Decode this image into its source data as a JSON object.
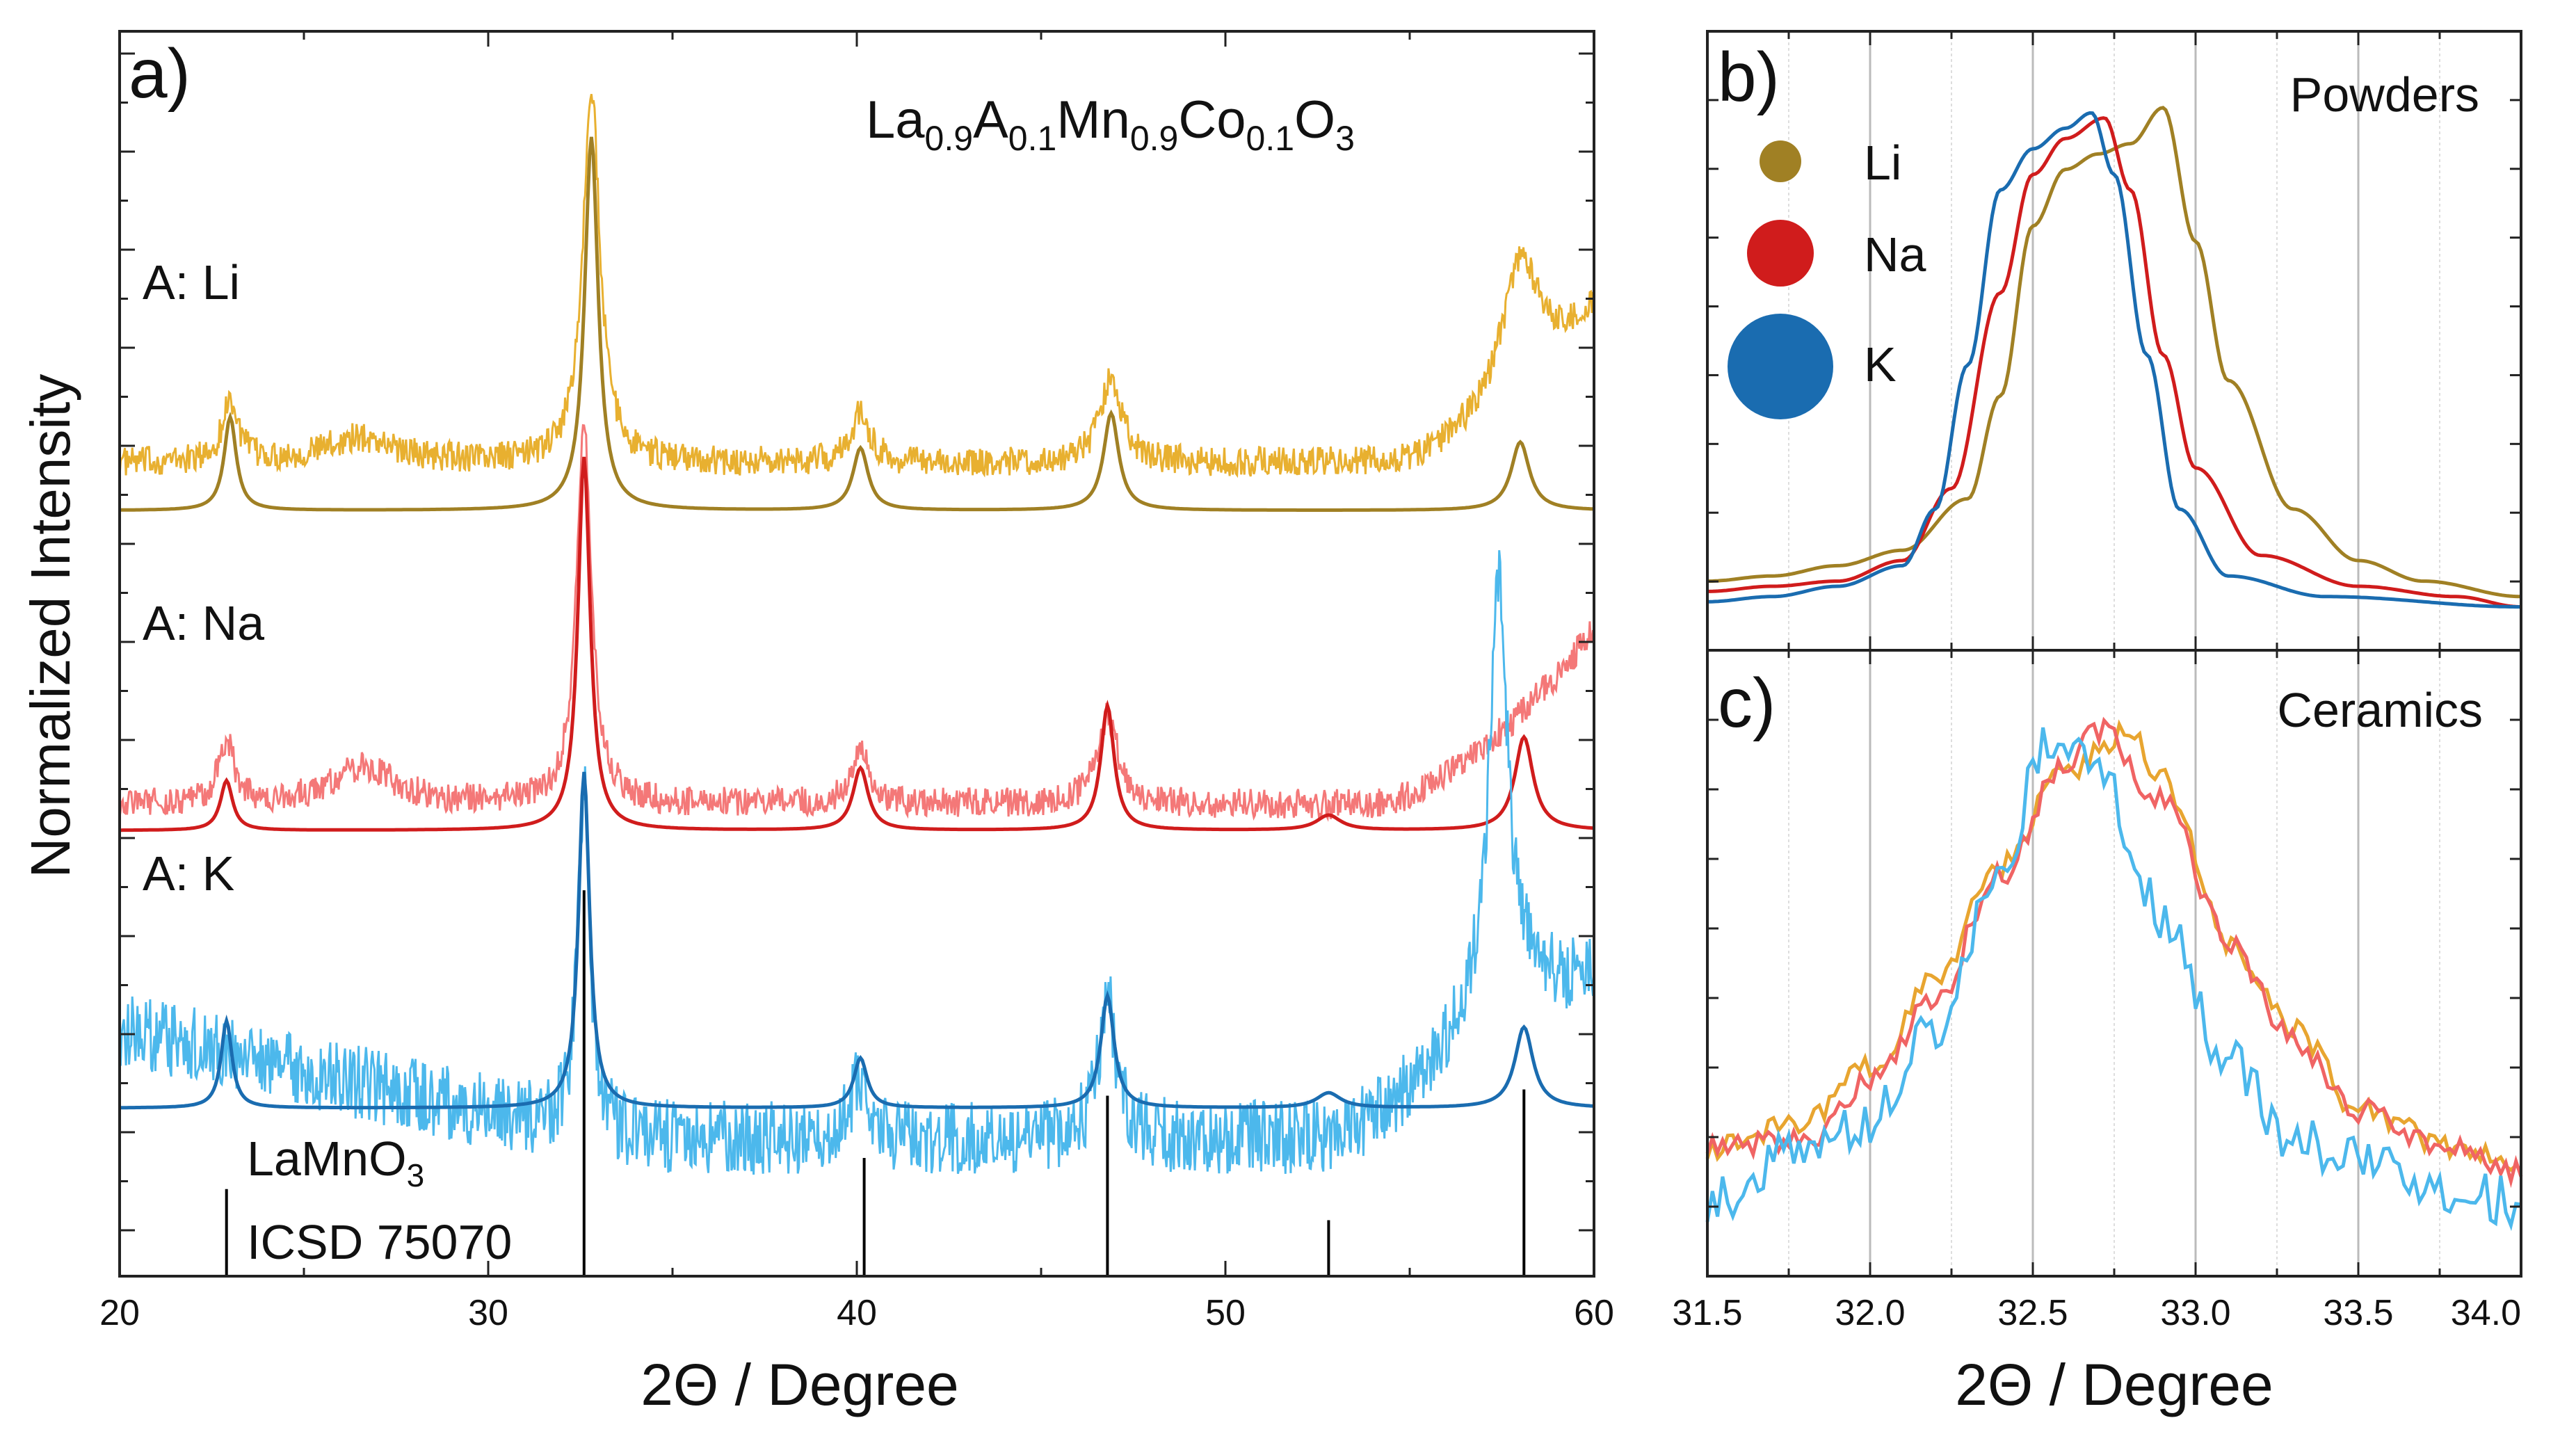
{
  "ylabel": "Normalized Intensity",
  "chart_data": [
    {
      "id": "a",
      "type": "line",
      "panel_label": "a)",
      "title_parts": {
        "base1": "La",
        "sub1": "0.9",
        "base2": "A",
        "sub2": "0.1",
        "base3": "Mn",
        "sub3": "0.9",
        "base4": "Co",
        "sub4": "0.1",
        "base5": "O",
        "sub5": "3"
      },
      "xlabel": "2Θ / Degree",
      "xlim": [
        20,
        60
      ],
      "xticks": [
        20,
        30,
        40,
        50,
        60
      ],
      "ylim": [
        0,
        1
      ],
      "reference": {
        "label_line1": "LaMnO",
        "label_line1_sub": "3",
        "label_line2": "ICSD 75070",
        "peaks": [
          {
            "pos": 22.9,
            "height": 0.07
          },
          {
            "pos": 32.6,
            "height": 0.31
          },
          {
            "pos": 40.2,
            "height": 0.095
          },
          {
            "pos": 46.8,
            "height": 0.145
          },
          {
            "pos": 52.8,
            "height": 0.045
          },
          {
            "pos": 58.1,
            "height": 0.15
          }
        ]
      },
      "series": [
        {
          "name": "A: Li",
          "sample": "ceramic",
          "color": "#E8B030",
          "offset": 0.653,
          "noise": 0.012,
          "peaks": [
            [
              23.0,
              0.05,
              0.25
            ],
            [
              26.5,
              0.02,
              1.2
            ],
            [
              32.8,
              0.3,
              0.28
            ],
            [
              40.1,
              0.04,
              0.3
            ],
            [
              46.9,
              0.07,
              0.35
            ],
            [
              58.0,
              0.11,
              0.6
            ]
          ],
          "background": "rise-to-end",
          "rise_start": 54.5,
          "rise_height": 0.12
        },
        {
          "name": "A: Li",
          "sample": "powder",
          "color": "#A08024",
          "offset": 0.615,
          "peaks": [
            [
              23.0,
              0.075,
              0.2
            ],
            [
              32.8,
              0.3,
              0.22
            ],
            [
              40.1,
              0.05,
              0.25
            ],
            [
              46.9,
              0.078,
              0.25
            ],
            [
              58.0,
              0.055,
              0.3
            ]
          ],
          "background": "flat"
        },
        {
          "name": "A: Na",
          "sample": "ceramic",
          "color": "#F47878",
          "offset": 0.379,
          "noise": 0.012,
          "peaks": [
            [
              22.9,
              0.05,
              0.25
            ],
            [
              26.6,
              0.03,
              1.0
            ],
            [
              32.6,
              0.3,
              0.25
            ],
            [
              40.1,
              0.04,
              0.3
            ],
            [
              46.8,
              0.07,
              0.35
            ]
          ],
          "background": "rise-to-end",
          "rise_start": 54.0,
          "rise_height": 0.14
        },
        {
          "name": "A: Na",
          "sample": "powder",
          "color": "#D01C1C",
          "offset": 0.358,
          "peaks": [
            [
              22.9,
              0.04,
              0.2
            ],
            [
              32.6,
              0.3,
              0.2
            ],
            [
              40.1,
              0.05,
              0.25
            ],
            [
              46.8,
              0.1,
              0.22
            ],
            [
              52.8,
              0.012,
              0.4
            ],
            [
              58.1,
              0.075,
              0.3
            ]
          ],
          "background": "flat"
        },
        {
          "name": "A: K",
          "sample": "ceramic",
          "color": "#4CB8EC",
          "offset": 0.11,
          "noise": 0.03,
          "peaks": [
            [
              32.6,
              0.28,
              0.2
            ],
            [
              40.1,
              0.05,
              0.3
            ],
            [
              46.8,
              0.11,
              0.3
            ],
            [
              57.4,
              0.32,
              0.3
            ]
          ],
          "background": "sloped-rise",
          "rise_start": 52.0,
          "rise_height": 0.12,
          "start_level": 0.09
        },
        {
          "name": "A: K",
          "sample": "powder",
          "color": "#1A6CB0",
          "offset": 0.135,
          "peaks": [
            [
              22.9,
              0.07,
              0.18
            ],
            [
              32.6,
              0.27,
              0.18
            ],
            [
              40.1,
              0.04,
              0.22
            ],
            [
              46.8,
              0.09,
              0.22
            ],
            [
              52.8,
              0.012,
              0.4
            ],
            [
              58.1,
              0.065,
              0.3
            ]
          ],
          "background": "flat"
        }
      ],
      "annotations": [
        "A: Li",
        "A: Na",
        "A: K"
      ]
    },
    {
      "id": "b",
      "type": "line",
      "panel_label": "b)",
      "title": "Powders",
      "xlim": [
        31.5,
        34.0
      ],
      "ylim": [
        0,
        1
      ],
      "legend": [
        {
          "label": "Li",
          "color": "#A08024",
          "size": "small"
        },
        {
          "label": "Na",
          "color": "#D01C1C",
          "size": "medium"
        },
        {
          "label": "K",
          "color": "#1A6CB0",
          "size": "large"
        }
      ],
      "series": [
        {
          "name": "Li",
          "color": "#A08024",
          "points": [
            [
              31.5,
              0.06
            ],
            [
              31.7,
              0.07
            ],
            [
              31.9,
              0.09
            ],
            [
              32.1,
              0.12
            ],
            [
              32.3,
              0.22
            ],
            [
              32.4,
              0.42
            ],
            [
              32.5,
              0.75
            ],
            [
              32.6,
              0.86
            ],
            [
              32.7,
              0.89
            ],
            [
              32.8,
              0.91
            ],
            [
              32.9,
              0.98
            ],
            [
              33.0,
              0.72
            ],
            [
              33.1,
              0.45
            ],
            [
              33.3,
              0.2
            ],
            [
              33.5,
              0.1
            ],
            [
              33.7,
              0.06
            ],
            [
              34.0,
              0.03
            ]
          ]
        },
        {
          "name": "Na",
          "color": "#D01C1C",
          "points": [
            [
              31.5,
              0.04
            ],
            [
              31.7,
              0.05
            ],
            [
              31.9,
              0.06
            ],
            [
              32.1,
              0.1
            ],
            [
              32.25,
              0.24
            ],
            [
              32.4,
              0.62
            ],
            [
              32.5,
              0.85
            ],
            [
              32.6,
              0.92
            ],
            [
              32.72,
              0.96
            ],
            [
              32.8,
              0.82
            ],
            [
              32.9,
              0.5
            ],
            [
              33.0,
              0.28
            ],
            [
              33.2,
              0.11
            ],
            [
              33.5,
              0.05
            ],
            [
              33.8,
              0.03
            ],
            [
              34.0,
              0.01
            ]
          ]
        },
        {
          "name": "K",
          "color": "#1A6CB0",
          "points": [
            [
              31.5,
              0.02
            ],
            [
              31.7,
              0.03
            ],
            [
              31.9,
              0.05
            ],
            [
              32.1,
              0.09
            ],
            [
              32.2,
              0.2
            ],
            [
              32.3,
              0.48
            ],
            [
              32.4,
              0.82
            ],
            [
              32.5,
              0.9
            ],
            [
              32.6,
              0.94
            ],
            [
              32.68,
              0.97
            ],
            [
              32.75,
              0.85
            ],
            [
              32.85,
              0.5
            ],
            [
              32.95,
              0.2
            ],
            [
              33.1,
              0.07
            ],
            [
              33.4,
              0.03
            ],
            [
              34.0,
              0.01
            ]
          ]
        }
      ]
    },
    {
      "id": "c",
      "type": "line",
      "panel_label": "c)",
      "title": "Ceramics",
      "xlabel": "2Θ / Degree",
      "xlim": [
        31.5,
        34.0
      ],
      "xticks": [
        31.5,
        32.0,
        32.5,
        33.0,
        33.5,
        34.0
      ],
      "xtick_labels": [
        "31.5",
        "32.0",
        "32.5",
        "33.0",
        "33.5",
        "34.0"
      ],
      "ylim": [
        0,
        1
      ],
      "series": [
        {
          "name": "Li",
          "color": "#E8A530",
          "noise": 0.025,
          "points": [
            [
              31.5,
              0.15
            ],
            [
              31.8,
              0.2
            ],
            [
              32.0,
              0.3
            ],
            [
              32.2,
              0.48
            ],
            [
              32.4,
              0.7
            ],
            [
              32.6,
              0.88
            ],
            [
              32.8,
              0.96
            ],
            [
              32.9,
              0.86
            ],
            [
              33.1,
              0.55
            ],
            [
              33.3,
              0.38
            ],
            [
              33.5,
              0.22
            ],
            [
              33.8,
              0.15
            ],
            [
              34.0,
              0.12
            ]
          ]
        },
        {
          "name": "Na",
          "color": "#F06464",
          "noise": 0.025,
          "points": [
            [
              31.5,
              0.16
            ],
            [
              31.8,
              0.16
            ],
            [
              32.0,
              0.28
            ],
            [
              32.2,
              0.44
            ],
            [
              32.4,
              0.68
            ],
            [
              32.6,
              0.9
            ],
            [
              32.7,
              0.96
            ],
            [
              32.9,
              0.82
            ],
            [
              33.1,
              0.55
            ],
            [
              33.3,
              0.36
            ],
            [
              33.5,
              0.22
            ],
            [
              33.8,
              0.14
            ],
            [
              34.0,
              0.1
            ]
          ]
        },
        {
          "name": "K",
          "color": "#4CB8EC",
          "noise": 0.05,
          "points": [
            [
              31.5,
              0.05
            ],
            [
              31.8,
              0.14
            ],
            [
              32.0,
              0.2
            ],
            [
              32.2,
              0.38
            ],
            [
              32.4,
              0.7
            ],
            [
              32.55,
              0.93
            ],
            [
              32.7,
              0.88
            ],
            [
              32.9,
              0.6
            ],
            [
              33.1,
              0.32
            ],
            [
              33.3,
              0.16
            ],
            [
              33.6,
              0.1
            ],
            [
              33.8,
              0.06
            ],
            [
              34.0,
              0.04
            ]
          ]
        }
      ]
    }
  ]
}
